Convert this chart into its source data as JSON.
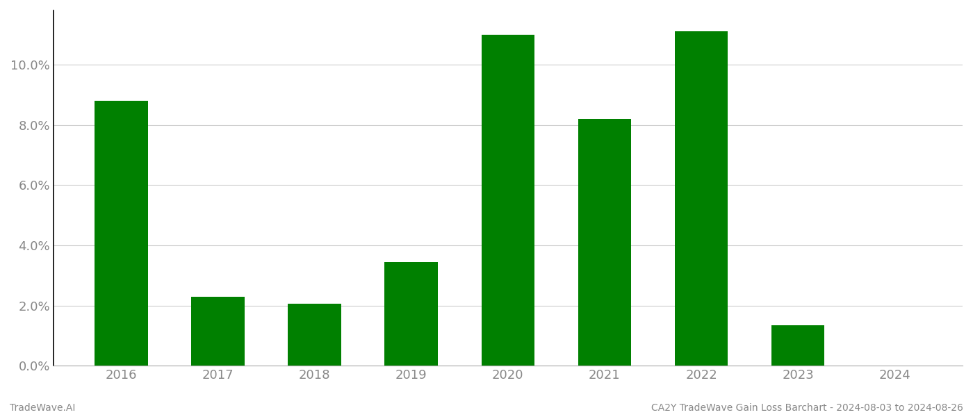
{
  "years": [
    2016,
    2017,
    2018,
    2019,
    2020,
    2021,
    2022,
    2023,
    2024
  ],
  "values": [
    0.088,
    0.023,
    0.0205,
    0.0345,
    0.11,
    0.082,
    0.111,
    0.0135,
    0.0
  ],
  "bar_color": "#008000",
  "footer_left": "TradeWave.AI",
  "footer_right": "CA2Y TradeWave Gain Loss Barchart - 2024-08-03 to 2024-08-26",
  "ylim": [
    0,
    0.118
  ],
  "yticks": [
    0.0,
    0.02,
    0.04,
    0.06,
    0.08,
    0.1
  ],
  "background_color": "#ffffff",
  "grid_color": "#cccccc",
  "bar_width": 0.55,
  "footer_fontsize": 10,
  "tick_fontsize": 13,
  "tick_color": "#888888",
  "left_spine_color": "#000000",
  "bottom_spine_color": "#aaaaaa"
}
